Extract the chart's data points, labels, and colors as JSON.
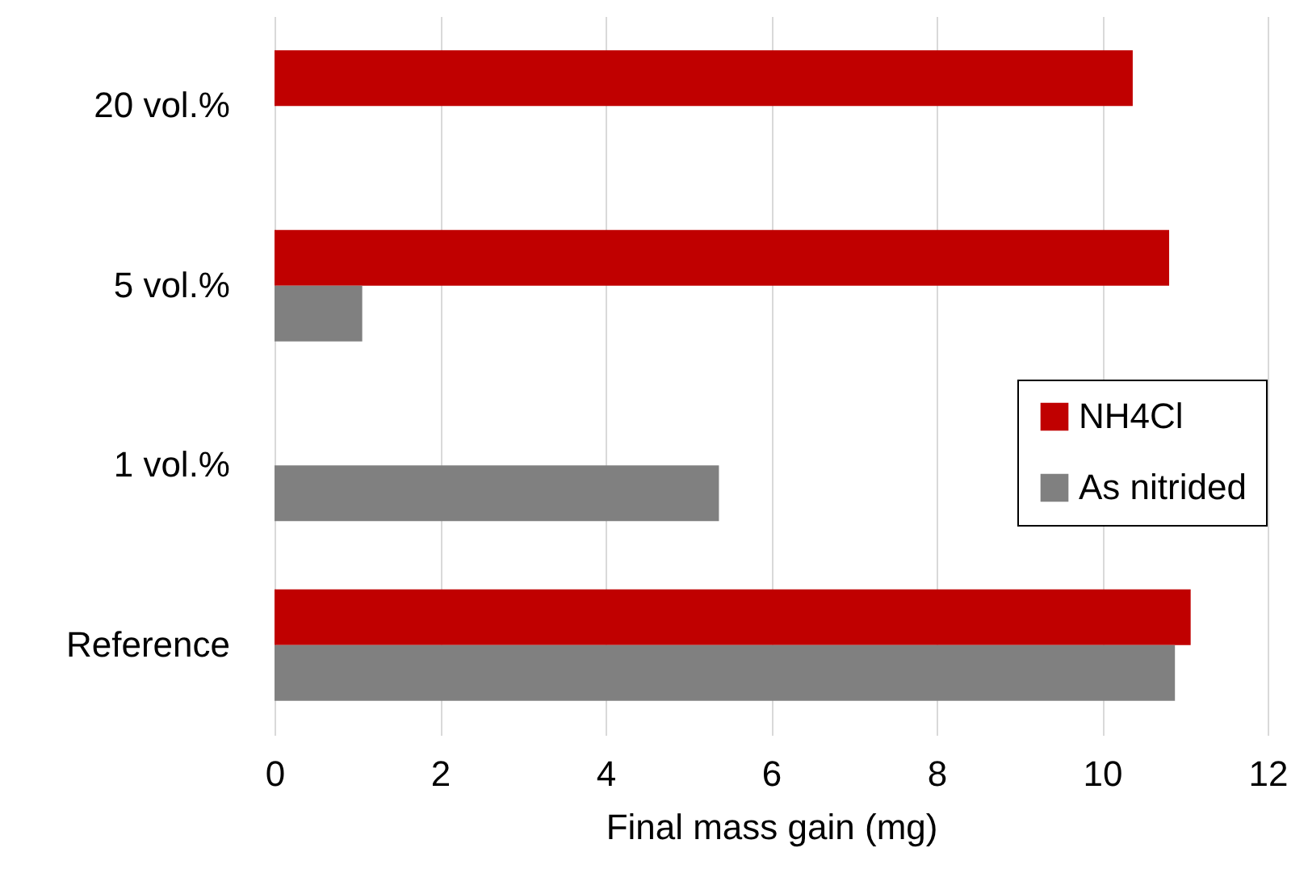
{
  "chart_data": {
    "type": "bar",
    "orientation": "horizontal",
    "xlabel": "Final mass gain (mg)",
    "categories": [
      "20 vol.%",
      "5 vol.%",
      "1 vol.%",
      "Reference"
    ],
    "series": [
      {
        "name": "NH4Cl",
        "color": "#c00000",
        "values": [
          10.37,
          10.81,
          null,
          11.07
        ]
      },
      {
        "name": "As nitrided",
        "color": "#808080",
        "values": [
          null,
          1.06,
          5.37,
          10.88
        ]
      }
    ],
    "xlim": [
      0,
      12
    ],
    "xticks": [
      0,
      2,
      4,
      6,
      8,
      10,
      12
    ],
    "grid": "x",
    "legend": "right"
  }
}
